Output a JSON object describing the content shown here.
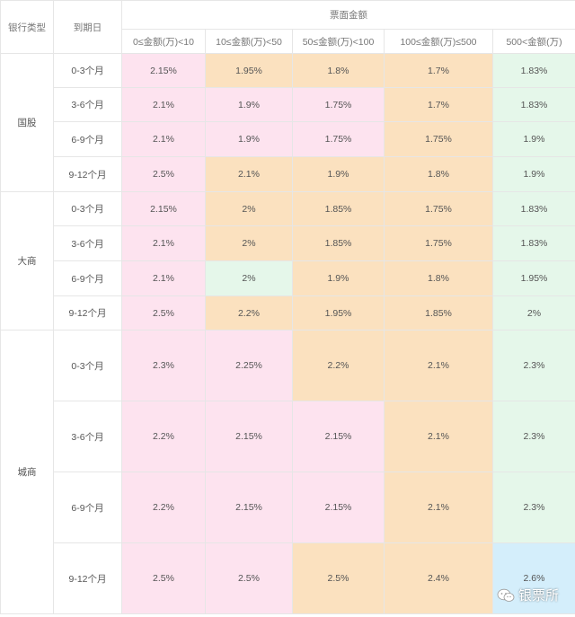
{
  "header": {
    "bank_type": "银行类型",
    "maturity": "到期日",
    "amount_group": "票面金额",
    "ranges": [
      "0≤金额(万)<10",
      "10≤金额(万)<50",
      "50≤金额(万)<100",
      "100≤金额(万)≤500",
      "500<金额(万)"
    ]
  },
  "groups": [
    {
      "name": "国股",
      "rows": [
        {
          "maturity": "0-3个月",
          "cells": [
            {
              "v": "2.15%",
              "c": "pink"
            },
            {
              "v": "1.95%",
              "c": "orange"
            },
            {
              "v": "1.8%",
              "c": "orange"
            },
            {
              "v": "1.7%",
              "c": "orange"
            },
            {
              "v": "1.83%",
              "c": "green"
            }
          ]
        },
        {
          "maturity": "3-6个月",
          "cells": [
            {
              "v": "2.1%",
              "c": "pink"
            },
            {
              "v": "1.9%",
              "c": "pink"
            },
            {
              "v": "1.75%",
              "c": "pink"
            },
            {
              "v": "1.7%",
              "c": "orange"
            },
            {
              "v": "1.83%",
              "c": "green"
            }
          ]
        },
        {
          "maturity": "6-9个月",
          "cells": [
            {
              "v": "2.1%",
              "c": "pink"
            },
            {
              "v": "1.9%",
              "c": "pink"
            },
            {
              "v": "1.75%",
              "c": "pink"
            },
            {
              "v": "1.75%",
              "c": "orange"
            },
            {
              "v": "1.9%",
              "c": "green"
            }
          ]
        },
        {
          "maturity": "9-12个月",
          "cells": [
            {
              "v": "2.5%",
              "c": "pink"
            },
            {
              "v": "2.1%",
              "c": "orange"
            },
            {
              "v": "1.9%",
              "c": "orange"
            },
            {
              "v": "1.8%",
              "c": "orange"
            },
            {
              "v": "1.9%",
              "c": "green"
            }
          ]
        }
      ]
    },
    {
      "name": "大商",
      "rows": [
        {
          "maturity": "0-3个月",
          "cells": [
            {
              "v": "2.15%",
              "c": "pink"
            },
            {
              "v": "2%",
              "c": "orange"
            },
            {
              "v": "1.85%",
              "c": "orange"
            },
            {
              "v": "1.75%",
              "c": "orange"
            },
            {
              "v": "1.83%",
              "c": "green"
            }
          ]
        },
        {
          "maturity": "3-6个月",
          "cells": [
            {
              "v": "2.1%",
              "c": "pink"
            },
            {
              "v": "2%",
              "c": "orange"
            },
            {
              "v": "1.85%",
              "c": "orange"
            },
            {
              "v": "1.75%",
              "c": "orange"
            },
            {
              "v": "1.83%",
              "c": "green"
            }
          ]
        },
        {
          "maturity": "6-9个月",
          "cells": [
            {
              "v": "2.1%",
              "c": "pink"
            },
            {
              "v": "2%",
              "c": "green"
            },
            {
              "v": "1.9%",
              "c": "orange"
            },
            {
              "v": "1.8%",
              "c": "orange"
            },
            {
              "v": "1.95%",
              "c": "green"
            }
          ]
        },
        {
          "maturity": "9-12个月",
          "cells": [
            {
              "v": "2.5%",
              "c": "pink"
            },
            {
              "v": "2.2%",
              "c": "orange"
            },
            {
              "v": "1.95%",
              "c": "orange"
            },
            {
              "v": "1.85%",
              "c": "orange"
            },
            {
              "v": "2%",
              "c": "green"
            }
          ]
        }
      ]
    },
    {
      "name": "城商",
      "rows": [
        {
          "maturity": "0-3个月",
          "cells": [
            {
              "v": "2.3%",
              "c": "pink"
            },
            {
              "v": "2.25%",
              "c": "pink"
            },
            {
              "v": "2.2%",
              "c": "orange"
            },
            {
              "v": "2.1%",
              "c": "orange"
            },
            {
              "v": "2.3%",
              "c": "green"
            }
          ]
        },
        {
          "maturity": "3-6个月",
          "cells": [
            {
              "v": "2.2%",
              "c": "pink"
            },
            {
              "v": "2.15%",
              "c": "pink"
            },
            {
              "v": "2.15%",
              "c": "pink"
            },
            {
              "v": "2.1%",
              "c": "orange"
            },
            {
              "v": "2.3%",
              "c": "green"
            }
          ]
        },
        {
          "maturity": "6-9个月",
          "cells": [
            {
              "v": "2.2%",
              "c": "pink"
            },
            {
              "v": "2.15%",
              "c": "pink"
            },
            {
              "v": "2.15%",
              "c": "pink"
            },
            {
              "v": "2.1%",
              "c": "orange"
            },
            {
              "v": "2.3%",
              "c": "green"
            }
          ]
        },
        {
          "maturity": "9-12个月",
          "cells": [
            {
              "v": "2.5%",
              "c": "pink"
            },
            {
              "v": "2.5%",
              "c": "pink"
            },
            {
              "v": "2.5%",
              "c": "orange"
            },
            {
              "v": "2.4%",
              "c": "orange"
            },
            {
              "v": "2.6%",
              "c": "blue"
            }
          ]
        }
      ]
    }
  ],
  "watermark": {
    "text": "银票所",
    "icon": "wechat-icon"
  },
  "colors": {
    "pink": "#fde3ef",
    "orange": "#fbe1bf",
    "green": "#e5f7ea",
    "blue": "#d4eefb"
  }
}
